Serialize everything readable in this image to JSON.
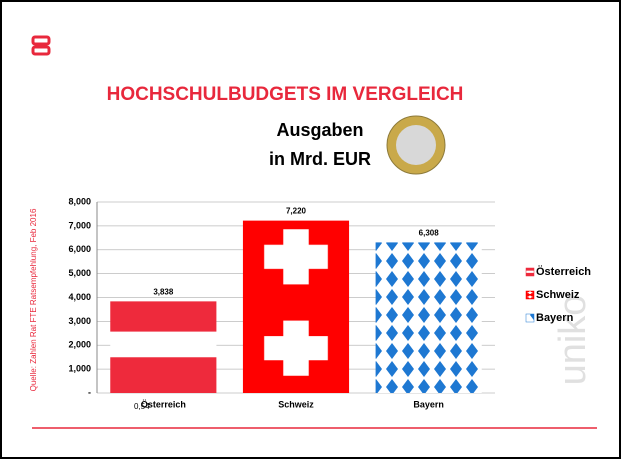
{
  "chart_data": {
    "type": "bar",
    "title": "HOCHSCHULBUDGETS IM VERGLEICH",
    "subtitle": [
      "Ausgaben",
      "in Mrd. EUR"
    ],
    "source": "Quelle: Zahlen Rat FTE Ratsempfehlung, Feb 2016",
    "annotation": "0,54",
    "categories": [
      "Österreich",
      "Schweiz",
      "Bayern"
    ],
    "values": [
      3.838,
      7.22,
      6.308
    ],
    "value_labels": [
      "3,838",
      "7,220",
      "6,308"
    ],
    "colors": [
      "#ee2a3c",
      "#ff0000",
      "#1e78d2"
    ],
    "ylim": [
      0,
      8
    ],
    "yticks": [
      {
        "value": 0,
        "label": "-"
      },
      {
        "value": 1,
        "label": "1,000"
      },
      {
        "value": 2,
        "label": "2,000"
      },
      {
        "value": 3,
        "label": "3,000"
      },
      {
        "value": 4,
        "label": "4,000"
      },
      {
        "value": 5,
        "label": "5,000"
      },
      {
        "value": 6,
        "label": "6,000"
      },
      {
        "value": 7,
        "label": "7,000"
      },
      {
        "value": 8,
        "label": "8,000"
      }
    ],
    "grid": true,
    "legend": "right"
  }
}
